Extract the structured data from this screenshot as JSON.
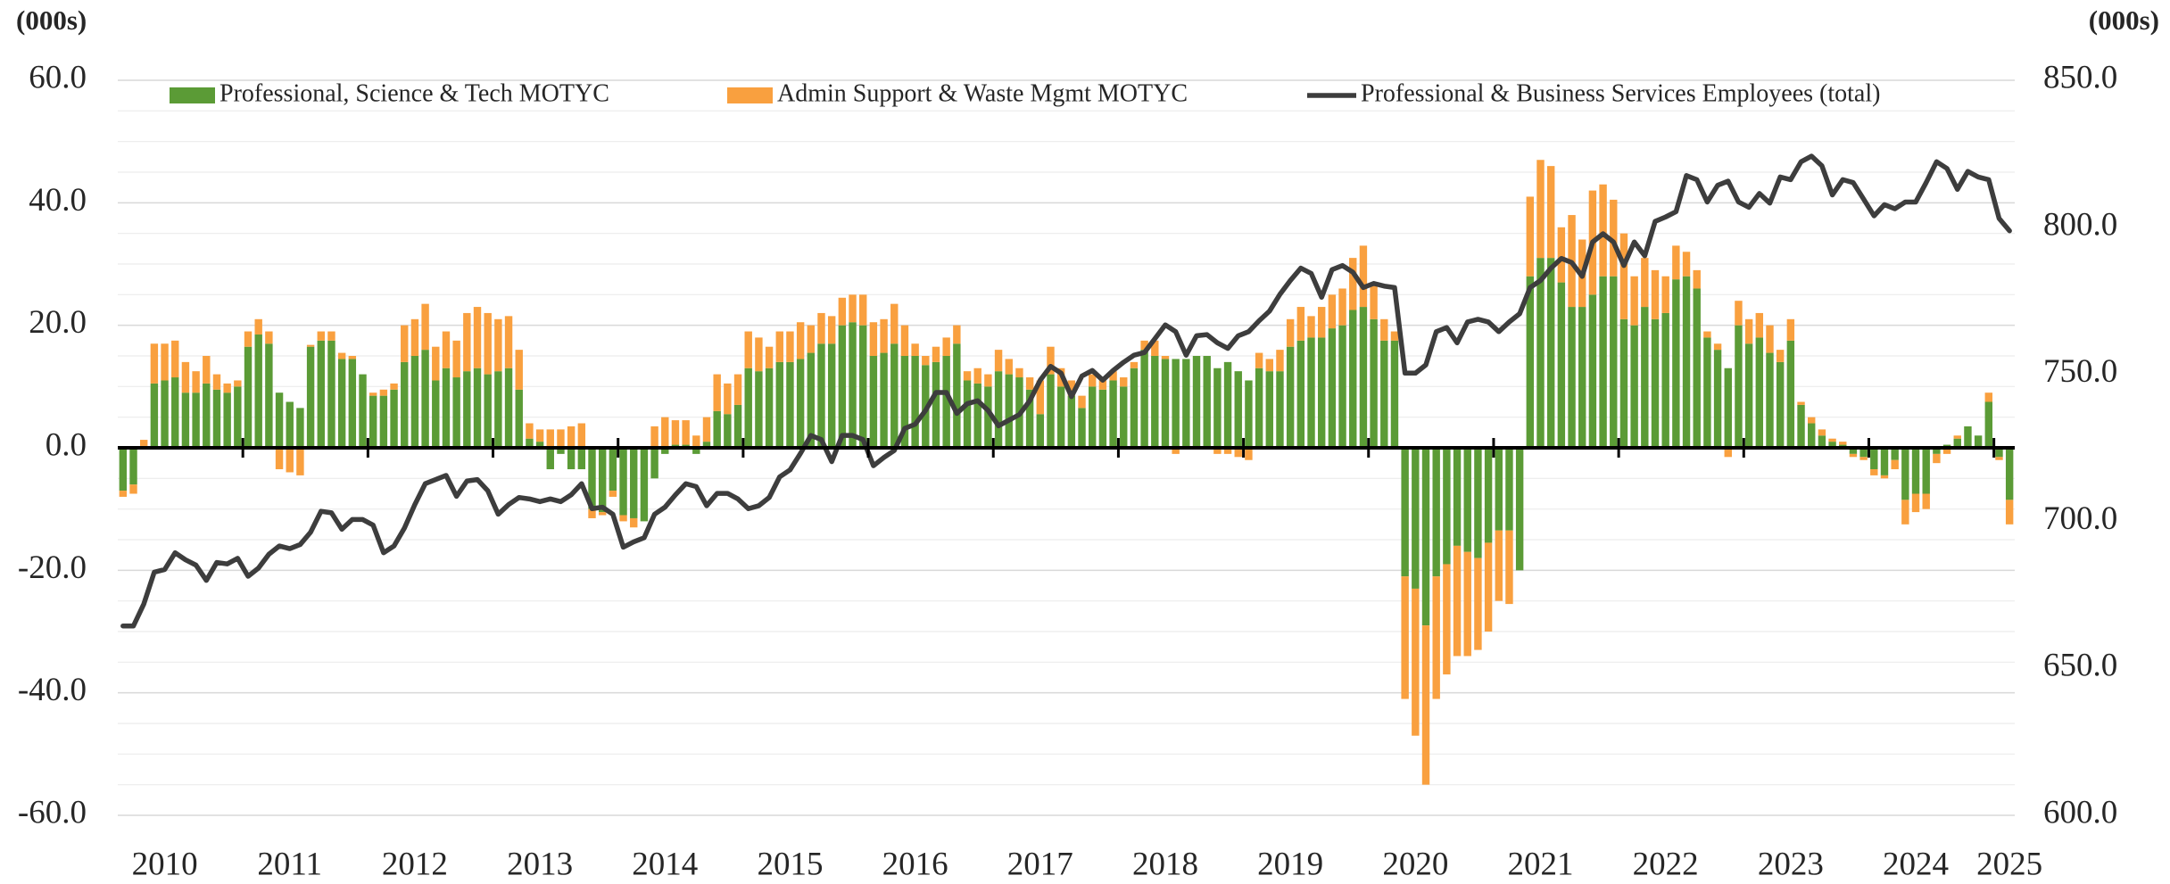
{
  "chart_data": {
    "type": "bar",
    "y_label": "(000s)",
    "y2_label": "(000s)",
    "legend": "top",
    "grid": true,
    "categories": [
      null,
      null,
      null,
      null,
      "2010",
      null,
      null,
      null,
      null,
      null,
      null,
      null,
      null,
      null,
      null,
      null,
      "2011",
      null,
      null,
      null,
      null,
      null,
      null,
      null,
      null,
      null,
      null,
      null,
      "2012",
      null,
      null,
      null,
      null,
      null,
      null,
      null,
      null,
      null,
      null,
      null,
      "2013",
      null,
      null,
      null,
      null,
      null,
      null,
      null,
      null,
      null,
      null,
      null,
      "2014",
      null,
      null,
      null,
      null,
      null,
      null,
      null,
      null,
      null,
      null,
      null,
      "2015",
      null,
      null,
      null,
      null,
      null,
      null,
      null,
      null,
      null,
      null,
      null,
      "2016",
      null,
      null,
      null,
      null,
      null,
      null,
      null,
      null,
      null,
      null,
      null,
      "2017",
      null,
      null,
      null,
      null,
      null,
      null,
      null,
      null,
      null,
      null,
      null,
      "2018",
      null,
      null,
      null,
      null,
      null,
      null,
      null,
      null,
      null,
      null,
      null,
      "2019",
      null,
      null,
      null,
      null,
      null,
      null,
      null,
      null,
      null,
      null,
      null,
      "2020",
      null,
      null,
      null,
      null,
      null,
      null,
      null,
      null,
      null,
      null,
      null,
      "2021",
      null,
      null,
      null,
      null,
      null,
      null,
      null,
      null,
      null,
      null,
      null,
      "2022",
      null,
      null,
      null,
      null,
      null,
      null,
      null,
      null,
      null,
      null,
      null,
      "2023",
      null,
      null,
      null,
      null,
      null,
      null,
      null,
      null,
      null,
      null,
      null,
      "2024",
      null,
      null,
      null,
      null,
      null,
      null,
      null,
      null,
      "2025"
    ],
    "series": [
      {
        "name": "Professional, Science & Tech MOTYC",
        "type": "bar",
        "color": "#5b9b36",
        "values": [
          -7,
          -6,
          0.3,
          10.5,
          11,
          11.5,
          9,
          9,
          10.5,
          9.5,
          9,
          10,
          16.5,
          18.5,
          17,
          9,
          7.5,
          6.5,
          16.5,
          17.5,
          17.5,
          14.5,
          14.5,
          12,
          8.5,
          8.5,
          9.5,
          14,
          15,
          16,
          11,
          13,
          11.5,
          12.5,
          13,
          12,
          12.5,
          13,
          9.5,
          1.5,
          1,
          -3.5,
          -1,
          -3.5,
          -3.5,
          -10,
          -10.5,
          -7,
          -11,
          -11.5,
          -12,
          -5,
          -1,
          0.5,
          0.5,
          -1,
          1,
          6,
          5.5,
          7,
          13,
          12.5,
          13,
          14,
          14,
          14.5,
          15.5,
          17,
          17,
          20,
          20.5,
          20,
          15,
          15.5,
          17,
          15,
          15,
          13.5,
          14,
          15,
          17,
          11,
          10.5,
          10,
          12.5,
          12,
          11.5,
          9.5,
          5.5,
          12,
          10,
          8.5,
          6.5,
          10,
          9.5,
          11,
          10,
          13,
          16,
          15,
          14.5,
          14.5,
          14.5,
          15,
          15,
          13,
          14,
          12.5,
          11,
          13,
          12.5,
          12.5,
          16.5,
          17.5,
          18,
          18,
          19.5,
          20,
          22.5,
          23,
          21,
          17.5,
          17.5,
          -21,
          -23,
          -29,
          -21,
          -19,
          -16,
          -17,
          -18,
          -15.5,
          -13.5,
          -13.5,
          -20,
          28,
          31,
          31,
          27,
          23,
          23,
          25,
          28,
          28,
          21,
          20,
          23,
          21,
          22,
          27.5,
          28,
          26,
          18,
          16,
          13,
          20,
          17,
          18,
          15.5,
          14,
          17.5,
          7,
          4,
          2,
          1,
          0.5,
          -1,
          -1.5,
          -3.5,
          -4.5,
          -2,
          -8.5,
          -7.5,
          -7.5,
          -1,
          0.5,
          1.5,
          3.5,
          2,
          7.5,
          -1.5,
          -8.5
        ]
      },
      {
        "name": "Admin Support & Waste Mgmt MOTYC",
        "type": "bar",
        "color": "#f9a03f",
        "values": [
          -1,
          -1.5,
          1,
          6.5,
          6,
          6,
          5,
          3.5,
          4.5,
          2.5,
          1.5,
          1,
          2.5,
          2.5,
          2,
          -3.5,
          -4,
          -4.5,
          0.3,
          1.5,
          1.5,
          1,
          0.5,
          0,
          0.5,
          1,
          1,
          6,
          6,
          7.5,
          5.5,
          6,
          6,
          9.5,
          10,
          10,
          8.5,
          8.5,
          6.5,
          2.5,
          2,
          3,
          3,
          3.5,
          4,
          -1.5,
          -0.5,
          -1,
          -1,
          -1.5,
          0,
          3.5,
          5,
          4,
          4,
          2,
          4,
          6,
          5,
          5,
          6,
          5.5,
          3.5,
          5,
          5,
          6,
          4.5,
          5,
          4.5,
          4.5,
          4.5,
          5,
          5.5,
          5.5,
          6.5,
          5,
          2,
          1.5,
          2.5,
          3,
          3,
          1.5,
          2.5,
          2,
          3.5,
          2.5,
          1.5,
          2,
          5.5,
          4.5,
          3,
          2.5,
          2,
          2,
          1.5,
          1.5,
          1.5,
          1,
          1.5,
          2.5,
          0.5,
          -1,
          0,
          0,
          0,
          -1,
          -1,
          -1.5,
          -2,
          2.5,
          2,
          3.5,
          4.5,
          5.5,
          3.5,
          5,
          5.5,
          6,
          8.5,
          10,
          6,
          3.5,
          1.5,
          -20,
          -24,
          -26,
          -20,
          -18,
          -18,
          -17,
          -15,
          -14.5,
          -11.5,
          -12,
          0,
          13,
          16,
          15,
          9,
          15,
          11,
          17,
          15,
          12.5,
          14,
          8,
          8,
          8,
          6,
          5.5,
          4,
          3,
          1,
          1,
          -1.5,
          4,
          4,
          4,
          4.5,
          2,
          3.5,
          0.5,
          1,
          1,
          0.5,
          0.5,
          -0.5,
          -0.5,
          -1,
          -0.5,
          -1.5,
          -4,
          -3,
          -2.5,
          -1.5,
          -1,
          0.5,
          0,
          0,
          1.5,
          -0.5,
          -4
        ]
      },
      {
        "name": "Professional & Business Services Employees (total)",
        "type": "line",
        "axis": "y2",
        "color": "#3d3d3d",
        "values": [
          664.4,
          664.4,
          671.9,
          682.7,
          683.6,
          689.3,
          686.9,
          685.1,
          679.9,
          686,
          685.5,
          687.4,
          681.3,
          684.1,
          688.8,
          691.6,
          690.7,
          692.1,
          696.3,
          703.4,
          702.9,
          697.3,
          700.6,
          700.6,
          698.7,
          689.3,
          691.6,
          697.7,
          705.7,
          712.8,
          714.2,
          715.6,
          708.5,
          713.7,
          714.2,
          710.4,
          702.4,
          705.7,
          708.1,
          707.6,
          706.7,
          707.6,
          706.7,
          709,
          712.8,
          704.3,
          704.8,
          702.4,
          691.2,
          693,
          694.4,
          702.4,
          704.8,
          709,
          712.8,
          711.8,
          705.3,
          709.5,
          709.5,
          707.6,
          704.3,
          705.3,
          708.1,
          715.1,
          717.5,
          723.1,
          729.2,
          727.8,
          720.3,
          729.2,
          729.2,
          727.8,
          718.9,
          721.7,
          724.1,
          731.6,
          733,
          737.7,
          743.8,
          743.8,
          736.7,
          740,
          741,
          737.7,
          732.5,
          734.4,
          736.3,
          741,
          748,
          752.7,
          750.4,
          742.4,
          749.4,
          751.3,
          748,
          751.3,
          754.1,
          756.5,
          757.4,
          762.1,
          766.8,
          764.5,
          756.5,
          763.1,
          763.5,
          760.7,
          758.8,
          763.1,
          764.5,
          768.2,
          771.5,
          777.2,
          781.9,
          786.1,
          784.3,
          776.2,
          785.6,
          787,
          784.7,
          779.5,
          780.9,
          780,
          779.5,
          750.4,
          750.4,
          753.2,
          764.5,
          765.9,
          760.7,
          767.8,
          768.7,
          767.8,
          764.5,
          767.8,
          770.6,
          779.5,
          781.9,
          786.1,
          789.4,
          788,
          783.3,
          795,
          797.8,
          795,
          787,
          795,
          790.3,
          802,
          803.5,
          805.3,
          817.6,
          816.2,
          808.6,
          814.3,
          815.7,
          808.6,
          806.8,
          811.5,
          808.2,
          817.1,
          816.2,
          822.3,
          824.2,
          820.9,
          811,
          816.2,
          815.2,
          809.6,
          803.9,
          807.7,
          806.3,
          808.6,
          808.6,
          815.2,
          822.3,
          820,
          812.9,
          819,
          817.1,
          816.2,
          803,
          798.8
        ]
      }
    ],
    "ylim": [
      -60,
      60
    ],
    "yticks": [
      {
        "value": -60,
        "label": "-60.0"
      },
      {
        "value": -40,
        "label": "-40.0"
      },
      {
        "value": -20,
        "label": "-20.0"
      },
      {
        "value": 0,
        "label": "0.0"
      },
      {
        "value": 20,
        "label": "20.0"
      },
      {
        "value": 40,
        "label": "40.0"
      },
      {
        "value": 60,
        "label": "60.0"
      }
    ],
    "y2lim": [
      600,
      850
    ],
    "y2ticks": [
      {
        "value": 600,
        "label": "600.0"
      },
      {
        "value": 650,
        "label": "650.0"
      },
      {
        "value": 700,
        "label": "700.0"
      },
      {
        "value": 750,
        "label": "750.0"
      },
      {
        "value": 800,
        "label": "800.0"
      },
      {
        "value": 850,
        "label": "850.0"
      }
    ]
  }
}
